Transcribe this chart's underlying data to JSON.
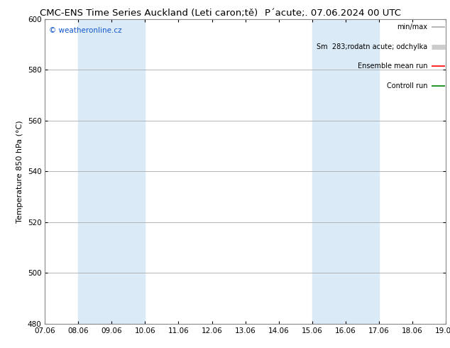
{
  "title_left": "CMC-ENS Time Series Auckland (Leti caron;tě)",
  "title_right": "P´acute;. 07.06.2024 00 UTC",
  "ylabel": "Temperature 850 hPa (°C)",
  "xlabel_ticks": [
    "07.06",
    "08.06",
    "09.06",
    "10.06",
    "11.06",
    "12.06",
    "13.06",
    "14.06",
    "15.06",
    "16.06",
    "17.06",
    "18.06",
    "19.06"
  ],
  "yticks": [
    480,
    500,
    520,
    540,
    560,
    580,
    600
  ],
  "ylim": [
    480,
    600
  ],
  "xlim": [
    0,
    12
  ],
  "shade_regions": [
    {
      "xstart": 1,
      "xend": 3,
      "color": "#daeaf7"
    },
    {
      "xstart": 8,
      "xend": 10,
      "color": "#daeaf7"
    }
  ],
  "watermark": "© weatheronline.cz",
  "background_color": "#ffffff",
  "plot_bg_color": "#ffffff",
  "grid_color": "#aaaaaa",
  "title_fontsize": 9.5,
  "ylabel_fontsize": 8,
  "tick_fontsize": 7.5,
  "legend_fontsize": 7,
  "watermark_fontsize": 7.5,
  "legend_items": [
    {
      "label": "min/max",
      "color": "#aaaaaa",
      "lw": 1.2
    },
    {
      "label": "Sm  283;rodatn acute; odchylka",
      "color": "#cccccc",
      "lw": 5
    },
    {
      "label": "Ensemble mean run",
      "color": "red",
      "lw": 1.2
    },
    {
      "label": "Controll run",
      "color": "green",
      "lw": 1.2
    }
  ]
}
